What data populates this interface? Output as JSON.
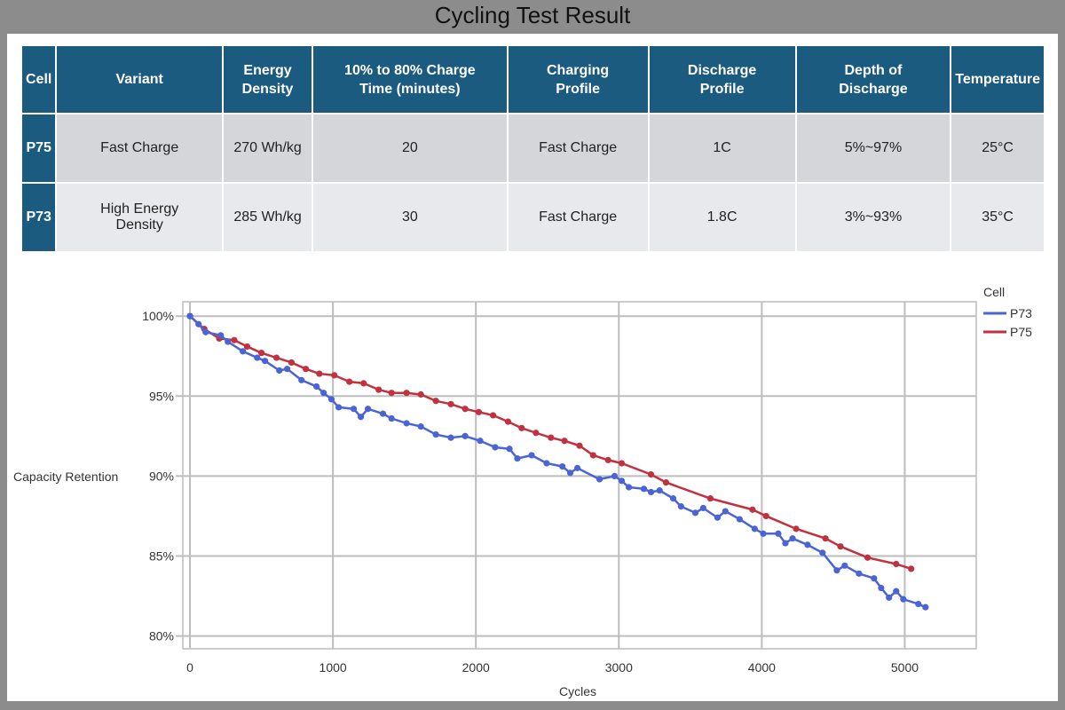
{
  "title": "Cycling Test Result",
  "table": {
    "headers": [
      "Cell",
      "Variant",
      "Energy Density",
      "10% to 80% Charge Time (minutes)",
      "Charging Profile",
      "Discharge Profile",
      "Depth of Discharge",
      "Temperature"
    ],
    "rows": [
      [
        "P75",
        "Fast Charge",
        "270 Wh/kg",
        "20",
        "Fast Charge",
        "1C",
        "5%~97%",
        "25°C"
      ],
      [
        "P73",
        "High Energy Density",
        "285 Wh/kg",
        "30",
        "Fast Charge",
        "1.8C",
        "3%~93%",
        "35°C"
      ]
    ]
  },
  "chart_data": {
    "type": "line",
    "title": "",
    "xlabel": "Cycles",
    "ylabel": "Capacity Retention",
    "xlim": [
      -50,
      5500
    ],
    "ylim": [
      79.2,
      100.9
    ],
    "xticks": [
      0,
      1000,
      2000,
      3000,
      4000,
      5000
    ],
    "yticks": [
      80,
      85,
      90,
      95,
      100
    ],
    "ytick_labels": [
      "80%",
      "85%",
      "90%",
      "95%",
      "100%"
    ],
    "grid": true,
    "legend": {
      "title": "Cell",
      "position": "top-right"
    },
    "series": [
      {
        "name": "P73",
        "color": "#4a64d6",
        "x": [
          0,
          60,
          110,
          215,
          265,
          370,
          470,
          525,
          625,
          680,
          780,
          885,
          935,
          990,
          1040,
          1145,
          1195,
          1245,
          1350,
          1410,
          1515,
          1615,
          1720,
          1825,
          1925,
          2030,
          2135,
          2235,
          2290,
          2390,
          2495,
          2605,
          2660,
          2710,
          2865,
          2970,
          3020,
          3070,
          3175,
          3225,
          3285,
          3380,
          3435,
          3535,
          3590,
          3690,
          3745,
          3845,
          3950,
          4010,
          4115,
          4165,
          4215,
          4320,
          4425,
          4525,
          4580,
          4680,
          4785,
          4835,
          4890,
          4940,
          4990,
          5095,
          5145
        ],
        "y": [
          100,
          99.5,
          99.0,
          98.8,
          98.4,
          97.8,
          97.4,
          97.2,
          96.6,
          96.7,
          96.0,
          95.6,
          95.2,
          94.8,
          94.3,
          94.2,
          93.7,
          94.2,
          93.9,
          93.6,
          93.3,
          93.1,
          92.6,
          92.4,
          92.5,
          92.2,
          91.8,
          91.7,
          91.1,
          91.3,
          90.8,
          90.6,
          90.2,
          90.5,
          89.8,
          90.0,
          89.7,
          89.3,
          89.2,
          89.0,
          89.1,
          88.6,
          88.1,
          87.7,
          88.0,
          87.4,
          87.8,
          87.3,
          86.7,
          86.4,
          86.4,
          85.8,
          86.1,
          85.7,
          85.2,
          84.1,
          84.4,
          83.9,
          83.6,
          83.0,
          82.4,
          82.8,
          82.3,
          82.0,
          81.8
        ]
      },
      {
        "name": "P75",
        "color": "#c0323f",
        "x": [
          0,
          100,
          205,
          310,
          400,
          500,
          605,
          710,
          810,
          905,
          1010,
          1115,
          1215,
          1320,
          1410,
          1515,
          1615,
          1720,
          1825,
          1925,
          2020,
          2120,
          2225,
          2320,
          2420,
          2525,
          2620,
          2725,
          2820,
          2925,
          3020,
          3225,
          3330,
          3640,
          3935,
          4030,
          4240,
          4445,
          4550,
          4740,
          4940,
          5045
        ],
        "y": [
          100,
          99.2,
          98.6,
          98.5,
          98.1,
          97.7,
          97.4,
          97.1,
          96.7,
          96.4,
          96.3,
          95.9,
          95.8,
          95.4,
          95.2,
          95.2,
          95.1,
          94.7,
          94.5,
          94.2,
          94.0,
          93.8,
          93.4,
          93.0,
          92.7,
          92.4,
          92.2,
          91.9,
          91.3,
          91.0,
          90.8,
          90.1,
          89.6,
          88.6,
          87.9,
          87.5,
          86.7,
          86.1,
          85.6,
          84.9,
          84.5,
          84.2
        ]
      }
    ]
  }
}
